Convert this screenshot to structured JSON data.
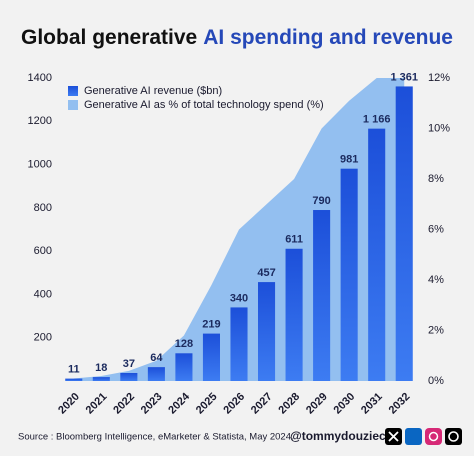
{
  "chart_data": {
    "type": "bar",
    "title": [
      "Global generative",
      "AI spending and revenue"
    ],
    "categories": [
      "2020",
      "2021",
      "2022",
      "2023",
      "2024",
      "2025",
      "2026",
      "2027",
      "2028",
      "2029",
      "2030",
      "2031",
      "2032"
    ],
    "series": [
      {
        "name": "Generative AI revenue ($bn)",
        "color": "#1f56e0",
        "type": "bar",
        "values": [
          11,
          18,
          37,
          64,
          128,
          219,
          340,
          457,
          611,
          790,
          981,
          1166,
          1361
        ],
        "value_labels": [
          "11",
          "18",
          "37",
          "64",
          "128",
          "219",
          "340",
          "457",
          "611",
          "790",
          "981",
          "1 166",
          "1 361"
        ]
      },
      {
        "name": "Generative AI as % of total technology spend (%)",
        "color": "#93bff0",
        "type": "area",
        "axis": "y2",
        "values": [
          0.1,
          0.2,
          0.4,
          0.8,
          1.8,
          3.8,
          6.0,
          7.0,
          8.0,
          10.0,
          11.1,
          12.0,
          12.0
        ]
      }
    ],
    "ylim": [
      0,
      1400
    ],
    "yticks": [
      200,
      400,
      600,
      800,
      1000,
      1200,
      1400
    ],
    "y2lim": [
      0,
      12
    ],
    "y2ticks": [
      {
        "value": 0,
        "label": "0%"
      },
      {
        "value": 2,
        "label": "2%"
      },
      {
        "value": 4,
        "label": "4%"
      },
      {
        "value": 6,
        "label": "6%"
      },
      {
        "value": 8,
        "label": "8%"
      },
      {
        "value": 10,
        "label": "10%"
      },
      {
        "value": 12,
        "label": "12%"
      }
    ],
    "legend": "upper left",
    "grid": false,
    "source": "Source : Bloomberg Intelligence, eMarketer & Statista, May 2024.",
    "handle": "@tommydouziech"
  }
}
